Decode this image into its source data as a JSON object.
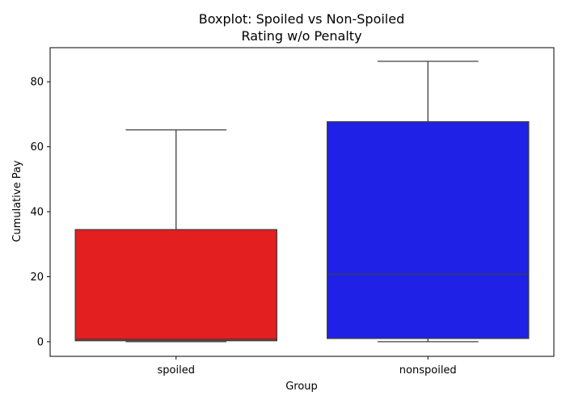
{
  "chart_data": {
    "type": "boxplot",
    "title_lines": [
      "Boxplot: Spoiled vs Non-Spoiled",
      "Rating w/o Penalty"
    ],
    "xlabel": "Group",
    "ylabel": "Cumulative Pay",
    "ylim": [
      -4.5,
      90.5
    ],
    "yticks": [
      0,
      20,
      40,
      60,
      80
    ],
    "categories": [
      "spoiled",
      "nonspoiled"
    ],
    "boxes": [
      {
        "category": "spoiled",
        "min": 0.0,
        "q1": 0.3,
        "median": 0.8,
        "q3": 34.5,
        "max": 65.2,
        "color": "#e31f1f"
      },
      {
        "category": "nonspoiled",
        "min": 0.0,
        "q1": 1.0,
        "median": 20.8,
        "q3": 67.7,
        "max": 86.3,
        "color": "#1f21e6"
      }
    ],
    "grid": false,
    "legend": "none"
  }
}
